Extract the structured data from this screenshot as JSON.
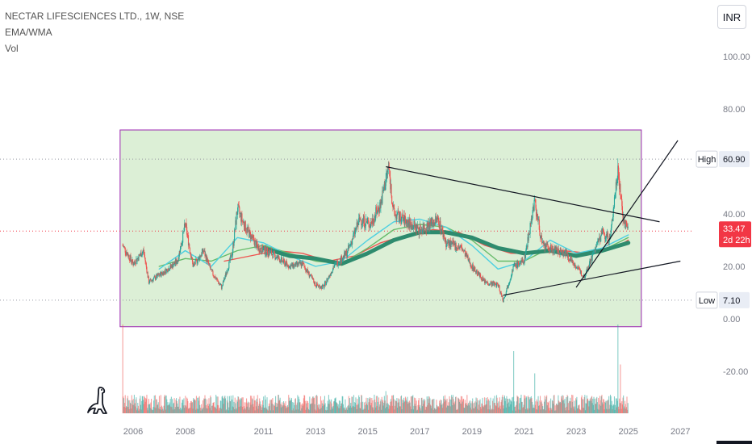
{
  "header": {
    "symbol_title": "NECTAR LIFESCIENCES LTD., 1W, NSE",
    "indicator_1": "EMA/WMA",
    "indicator_2": "Vol"
  },
  "currency_button": "INR",
  "price_labels": {
    "current_price": "33.47",
    "countdown": "2d 22h",
    "high_label": "High",
    "high_value": "60.90",
    "low_label": "Low",
    "low_value": "7.10"
  },
  "colors": {
    "up": "#26a69a",
    "down": "#ef5350",
    "range_fill": "#dcefd6",
    "range_border": "#9c27b0",
    "price_tag": "#f23645",
    "ema_fast": "#4dd0e1",
    "ema_mid": "#66bb6a",
    "ema_slow": "#ef5350",
    "wma_long": "#2e8b6e"
  },
  "logo_icon": "dinosaur-icon",
  "chart_data": {
    "type": "candlestick",
    "title": "NECTAR LIFESCIENCES LTD., 1W, NSE",
    "ylim": [
      -35,
      110
    ],
    "y_ticks": [
      "100.00",
      "80.00",
      "60.00",
      "40.00",
      "20.00",
      "0.00",
      "-20.00"
    ],
    "x_ticks": [
      "2006",
      "2008",
      "2011",
      "2013",
      "2015",
      "2017",
      "2019",
      "2021",
      "2023",
      "2025",
      "2027"
    ],
    "high": 60.9,
    "low": 7.1,
    "last": 33.47,
    "price_path": [
      {
        "year": 2005.6,
        "price": 28
      },
      {
        "year": 2006.0,
        "price": 21
      },
      {
        "year": 2006.4,
        "price": 26
      },
      {
        "year": 2006.6,
        "price": 14
      },
      {
        "year": 2007.2,
        "price": 18
      },
      {
        "year": 2007.7,
        "price": 22
      },
      {
        "year": 2008.0,
        "price": 36
      },
      {
        "year": 2008.3,
        "price": 20
      },
      {
        "year": 2008.7,
        "price": 26
      },
      {
        "year": 2009.0,
        "price": 18
      },
      {
        "year": 2009.4,
        "price": 12
      },
      {
        "year": 2009.8,
        "price": 25
      },
      {
        "year": 2010.0,
        "price": 42
      },
      {
        "year": 2010.3,
        "price": 35
      },
      {
        "year": 2010.8,
        "price": 27
      },
      {
        "year": 2011.3,
        "price": 25
      },
      {
        "year": 2012.0,
        "price": 20
      },
      {
        "year": 2012.5,
        "price": 21
      },
      {
        "year": 2013.0,
        "price": 13
      },
      {
        "year": 2013.3,
        "price": 12
      },
      {
        "year": 2013.7,
        "price": 20
      },
      {
        "year": 2014.2,
        "price": 25
      },
      {
        "year": 2014.7,
        "price": 38
      },
      {
        "year": 2015.1,
        "price": 36
      },
      {
        "year": 2015.5,
        "price": 44
      },
      {
        "year": 2015.8,
        "price": 58
      },
      {
        "year": 2016.0,
        "price": 40
      },
      {
        "year": 2016.5,
        "price": 37
      },
      {
        "year": 2017.0,
        "price": 34
      },
      {
        "year": 2017.7,
        "price": 38
      },
      {
        "year": 2018.0,
        "price": 29
      },
      {
        "year": 2018.6,
        "price": 27
      },
      {
        "year": 2019.0,
        "price": 20
      },
      {
        "year": 2019.5,
        "price": 14
      },
      {
        "year": 2020.0,
        "price": 13
      },
      {
        "year": 2020.2,
        "price": 7.1
      },
      {
        "year": 2020.6,
        "price": 20
      },
      {
        "year": 2021.0,
        "price": 22
      },
      {
        "year": 2021.4,
        "price": 45
      },
      {
        "year": 2021.7,
        "price": 28
      },
      {
        "year": 2022.2,
        "price": 26
      },
      {
        "year": 2022.6,
        "price": 25
      },
      {
        "year": 2023.0,
        "price": 20
      },
      {
        "year": 2023.3,
        "price": 16
      },
      {
        "year": 2023.7,
        "price": 26
      },
      {
        "year": 2024.0,
        "price": 33
      },
      {
        "year": 2024.3,
        "price": 30
      },
      {
        "year": 2024.6,
        "price": 58
      },
      {
        "year": 2024.8,
        "price": 38
      },
      {
        "year": 2025.0,
        "price": 33.47
      }
    ],
    "wma_long": [
      {
        "year": 2011.0,
        "price": 27
      },
      {
        "year": 2012.0,
        "price": 24
      },
      {
        "year": 2013.0,
        "price": 23
      },
      {
        "year": 2014.0,
        "price": 21
      },
      {
        "year": 2015.0,
        "price": 25
      },
      {
        "year": 2016.0,
        "price": 30
      },
      {
        "year": 2017.0,
        "price": 33
      },
      {
        "year": 2018.0,
        "price": 33
      },
      {
        "year": 2019.0,
        "price": 31
      },
      {
        "year": 2020.0,
        "price": 27
      },
      {
        "year": 2021.0,
        "price": 25
      },
      {
        "year": 2022.0,
        "price": 26
      },
      {
        "year": 2023.0,
        "price": 24
      },
      {
        "year": 2024.0,
        "price": 26
      },
      {
        "year": 2025.0,
        "price": 29
      }
    ],
    "ema_fast": [
      {
        "year": 2007.0,
        "price": 19
      },
      {
        "year": 2008.0,
        "price": 26
      },
      {
        "year": 2009.0,
        "price": 20
      },
      {
        "year": 2010.0,
        "price": 31
      },
      {
        "year": 2011.0,
        "price": 29
      },
      {
        "year": 2012.0,
        "price": 24
      },
      {
        "year": 2013.0,
        "price": 20
      },
      {
        "year": 2014.0,
        "price": 22
      },
      {
        "year": 2015.0,
        "price": 30
      },
      {
        "year": 2016.0,
        "price": 37
      },
      {
        "year": 2017.0,
        "price": 38
      },
      {
        "year": 2018.0,
        "price": 35
      },
      {
        "year": 2019.0,
        "price": 28
      },
      {
        "year": 2020.0,
        "price": 19
      },
      {
        "year": 2021.0,
        "price": 22
      },
      {
        "year": 2022.0,
        "price": 30
      },
      {
        "year": 2023.0,
        "price": 25
      },
      {
        "year": 2024.0,
        "price": 27
      },
      {
        "year": 2025.0,
        "price": 32
      }
    ],
    "ema_mid": [
      {
        "year": 2007.0,
        "price": 20
      },
      {
        "year": 2008.0,
        "price": 23
      },
      {
        "year": 2009.0,
        "price": 22
      },
      {
        "year": 2010.0,
        "price": 26
      },
      {
        "year": 2011.0,
        "price": 28
      },
      {
        "year": 2012.0,
        "price": 25
      },
      {
        "year": 2013.0,
        "price": 22
      },
      {
        "year": 2014.0,
        "price": 21
      },
      {
        "year": 2015.0,
        "price": 27
      },
      {
        "year": 2016.0,
        "price": 34
      },
      {
        "year": 2017.0,
        "price": 36
      },
      {
        "year": 2018.0,
        "price": 35
      },
      {
        "year": 2019.0,
        "price": 30
      },
      {
        "year": 2020.0,
        "price": 22
      },
      {
        "year": 2021.0,
        "price": 22
      },
      {
        "year": 2022.0,
        "price": 27
      },
      {
        "year": 2023.0,
        "price": 24
      },
      {
        "year": 2024.0,
        "price": 26
      },
      {
        "year": 2025.0,
        "price": 31
      }
    ],
    "ema_slow": [
      {
        "year": 2009.5,
        "price": 22
      },
      {
        "year": 2010.5,
        "price": 24
      },
      {
        "year": 2011.5,
        "price": 26
      },
      {
        "year": 2012.5,
        "price": 25
      },
      {
        "year": 2013.5,
        "price": 22
      },
      {
        "year": 2014.5,
        "price": 24
      },
      {
        "year": 2015.5,
        "price": 29
      },
      {
        "year": 2016.5,
        "price": 32
      },
      {
        "year": 2017.5,
        "price": 34
      },
      {
        "year": 2018.5,
        "price": 33
      },
      {
        "year": 2019.5,
        "price": 28
      },
      {
        "year": 2020.5,
        "price": 25
      },
      {
        "year": 2021.5,
        "price": 25
      },
      {
        "year": 2022.5,
        "price": 26
      },
      {
        "year": 2023.5,
        "price": 25
      },
      {
        "year": 2024.5,
        "price": 27
      },
      {
        "year": 2025.0,
        "price": 30
      }
    ],
    "trendlines": [
      {
        "from": {
          "year": 2015.7,
          "price": 58
        },
        "to": {
          "year": 2026.2,
          "price": 37
        }
      },
      {
        "from": {
          "year": 2020.2,
          "price": 9
        },
        "to": {
          "year": 2027.0,
          "price": 22
        }
      },
      {
        "from": {
          "year": 2023.0,
          "price": 12
        },
        "to": {
          "year": 2026.9,
          "price": 68
        }
      }
    ],
    "range_box": {
      "x0": 2005.5,
      "x1": 2025.5,
      "y_top": 72,
      "y_bottom": -3
    },
    "dotted_levels": [
      60.9,
      33.47,
      7.1
    ],
    "volume_spikes": [
      {
        "year": 2005.6,
        "value": 1.0
      },
      {
        "year": 2015.7,
        "value": 0.25
      },
      {
        "year": 2020.6,
        "value": 0.7
      },
      {
        "year": 2021.4,
        "value": 0.45
      },
      {
        "year": 2024.6,
        "value": 1.0
      },
      {
        "year": 2024.7,
        "value": 0.55
      }
    ]
  }
}
